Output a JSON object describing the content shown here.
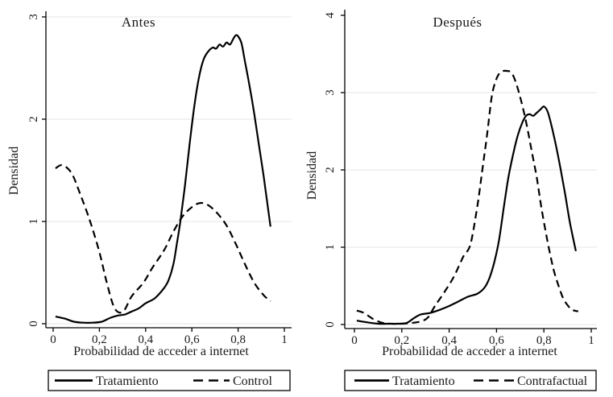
{
  "figure": {
    "background": "#ffffff",
    "line_color": "#000000",
    "grid_color": "#e6e6e6",
    "axis_color": "#000000",
    "text_color": "#1a1a1a"
  },
  "chart_data": [
    {
      "type": "line",
      "title": "Antes",
      "xlabel": "Probabilidad de acceder a internet",
      "ylabel": "Densidad",
      "xlim": [
        0,
        1
      ],
      "ylim": [
        0,
        3
      ],
      "xticks": [
        0,
        0.2,
        0.4,
        0.6,
        0.8,
        1
      ],
      "xtick_labels": [
        "0",
        "0,2",
        "0,4",
        "0,6",
        "0,8",
        "1"
      ],
      "yticks": [
        0,
        1,
        2,
        3
      ],
      "ytick_labels": [
        "0",
        "1",
        "2",
        "3"
      ],
      "grid": "horizontal",
      "legend_position": "bottom-box",
      "series": [
        {
          "name": "Tratamiento",
          "line_style": "solid",
          "x": [
            0.01,
            0.05,
            0.09,
            0.13,
            0.17,
            0.21,
            0.25,
            0.28,
            0.31,
            0.34,
            0.37,
            0.4,
            0.44,
            0.48,
            0.5,
            0.52,
            0.535,
            0.55,
            0.57,
            0.59,
            0.61,
            0.63,
            0.65,
            0.67,
            0.69,
            0.705,
            0.72,
            0.735,
            0.75,
            0.765,
            0.78,
            0.79,
            0.8,
            0.815,
            0.83,
            0.85,
            0.87,
            0.89,
            0.91,
            0.925,
            0.94
          ],
          "y": [
            0.07,
            0.05,
            0.02,
            0.01,
            0.01,
            0.02,
            0.06,
            0.08,
            0.09,
            0.12,
            0.15,
            0.2,
            0.25,
            0.35,
            0.43,
            0.58,
            0.78,
            1.0,
            1.35,
            1.75,
            2.12,
            2.4,
            2.58,
            2.66,
            2.7,
            2.69,
            2.73,
            2.71,
            2.75,
            2.73,
            2.79,
            2.82,
            2.81,
            2.74,
            2.56,
            2.32,
            2.05,
            1.75,
            1.45,
            1.2,
            0.95
          ]
        },
        {
          "name": "Control",
          "line_style": "dashed",
          "x": [
            0.01,
            0.04,
            0.08,
            0.12,
            0.16,
            0.2,
            0.23,
            0.26,
            0.285,
            0.31,
            0.34,
            0.39,
            0.43,
            0.48,
            0.52,
            0.56,
            0.6,
            0.635,
            0.67,
            0.71,
            0.75,
            0.79,
            0.83,
            0.87,
            0.91,
            0.94
          ],
          "y": [
            1.52,
            1.55,
            1.47,
            1.25,
            1.0,
            0.7,
            0.42,
            0.18,
            0.11,
            0.14,
            0.27,
            0.4,
            0.55,
            0.72,
            0.9,
            1.05,
            1.14,
            1.18,
            1.16,
            1.08,
            0.96,
            0.78,
            0.58,
            0.4,
            0.28,
            0.22
          ]
        }
      ]
    },
    {
      "type": "line",
      "title": "Después",
      "xlabel": "Probabilidad de acceder a internet",
      "ylabel": "Densidad",
      "xlim": [
        0,
        1
      ],
      "ylim": [
        0,
        4
      ],
      "xticks": [
        0,
        0.2,
        0.4,
        0.6,
        0.8,
        1
      ],
      "xtick_labels": [
        "0",
        "0,2",
        "0,4",
        "0,6",
        "0,8",
        "1"
      ],
      "yticks": [
        0,
        1,
        2,
        3,
        4
      ],
      "ytick_labels": [
        "0",
        "1",
        "2",
        "3",
        "4"
      ],
      "grid": "horizontal",
      "legend_position": "bottom-box",
      "series": [
        {
          "name": "Tratamiento",
          "line_style": "solid",
          "x": [
            0.01,
            0.05,
            0.1,
            0.14,
            0.18,
            0.22,
            0.25,
            0.28,
            0.32,
            0.36,
            0.4,
            0.44,
            0.48,
            0.52,
            0.55,
            0.57,
            0.59,
            0.61,
            0.63,
            0.65,
            0.67,
            0.69,
            0.71,
            0.725,
            0.74,
            0.755,
            0.77,
            0.785,
            0.8,
            0.815,
            0.83,
            0.85,
            0.87,
            0.89,
            0.91,
            0.935
          ],
          "y": [
            0.05,
            0.03,
            0.01,
            0.01,
            0.01,
            0.02,
            0.08,
            0.13,
            0.15,
            0.19,
            0.24,
            0.3,
            0.36,
            0.4,
            0.48,
            0.6,
            0.8,
            1.08,
            1.5,
            1.9,
            2.2,
            2.45,
            2.62,
            2.7,
            2.72,
            2.7,
            2.74,
            2.78,
            2.82,
            2.76,
            2.6,
            2.33,
            2.02,
            1.68,
            1.32,
            0.95
          ]
        },
        {
          "name": "Contrafactual",
          "line_style": "dashed",
          "x": [
            0.01,
            0.04,
            0.08,
            0.12,
            0.16,
            0.2,
            0.24,
            0.28,
            0.31,
            0.34,
            0.38,
            0.42,
            0.46,
            0.49,
            0.52,
            0.54,
            0.56,
            0.58,
            0.6,
            0.62,
            0.645,
            0.665,
            0.685,
            0.705,
            0.725,
            0.75,
            0.77,
            0.79,
            0.815,
            0.84,
            0.86,
            0.88,
            0.9,
            0.92,
            0.945
          ],
          "y": [
            0.18,
            0.15,
            0.07,
            0.02,
            0.01,
            0.01,
            0.02,
            0.04,
            0.09,
            0.24,
            0.42,
            0.62,
            0.88,
            1.04,
            1.55,
            2.0,
            2.45,
            2.95,
            3.18,
            3.27,
            3.28,
            3.25,
            3.1,
            2.88,
            2.62,
            2.22,
            1.9,
            1.5,
            1.08,
            0.72,
            0.52,
            0.35,
            0.25,
            0.19,
            0.17
          ]
        }
      ]
    }
  ]
}
